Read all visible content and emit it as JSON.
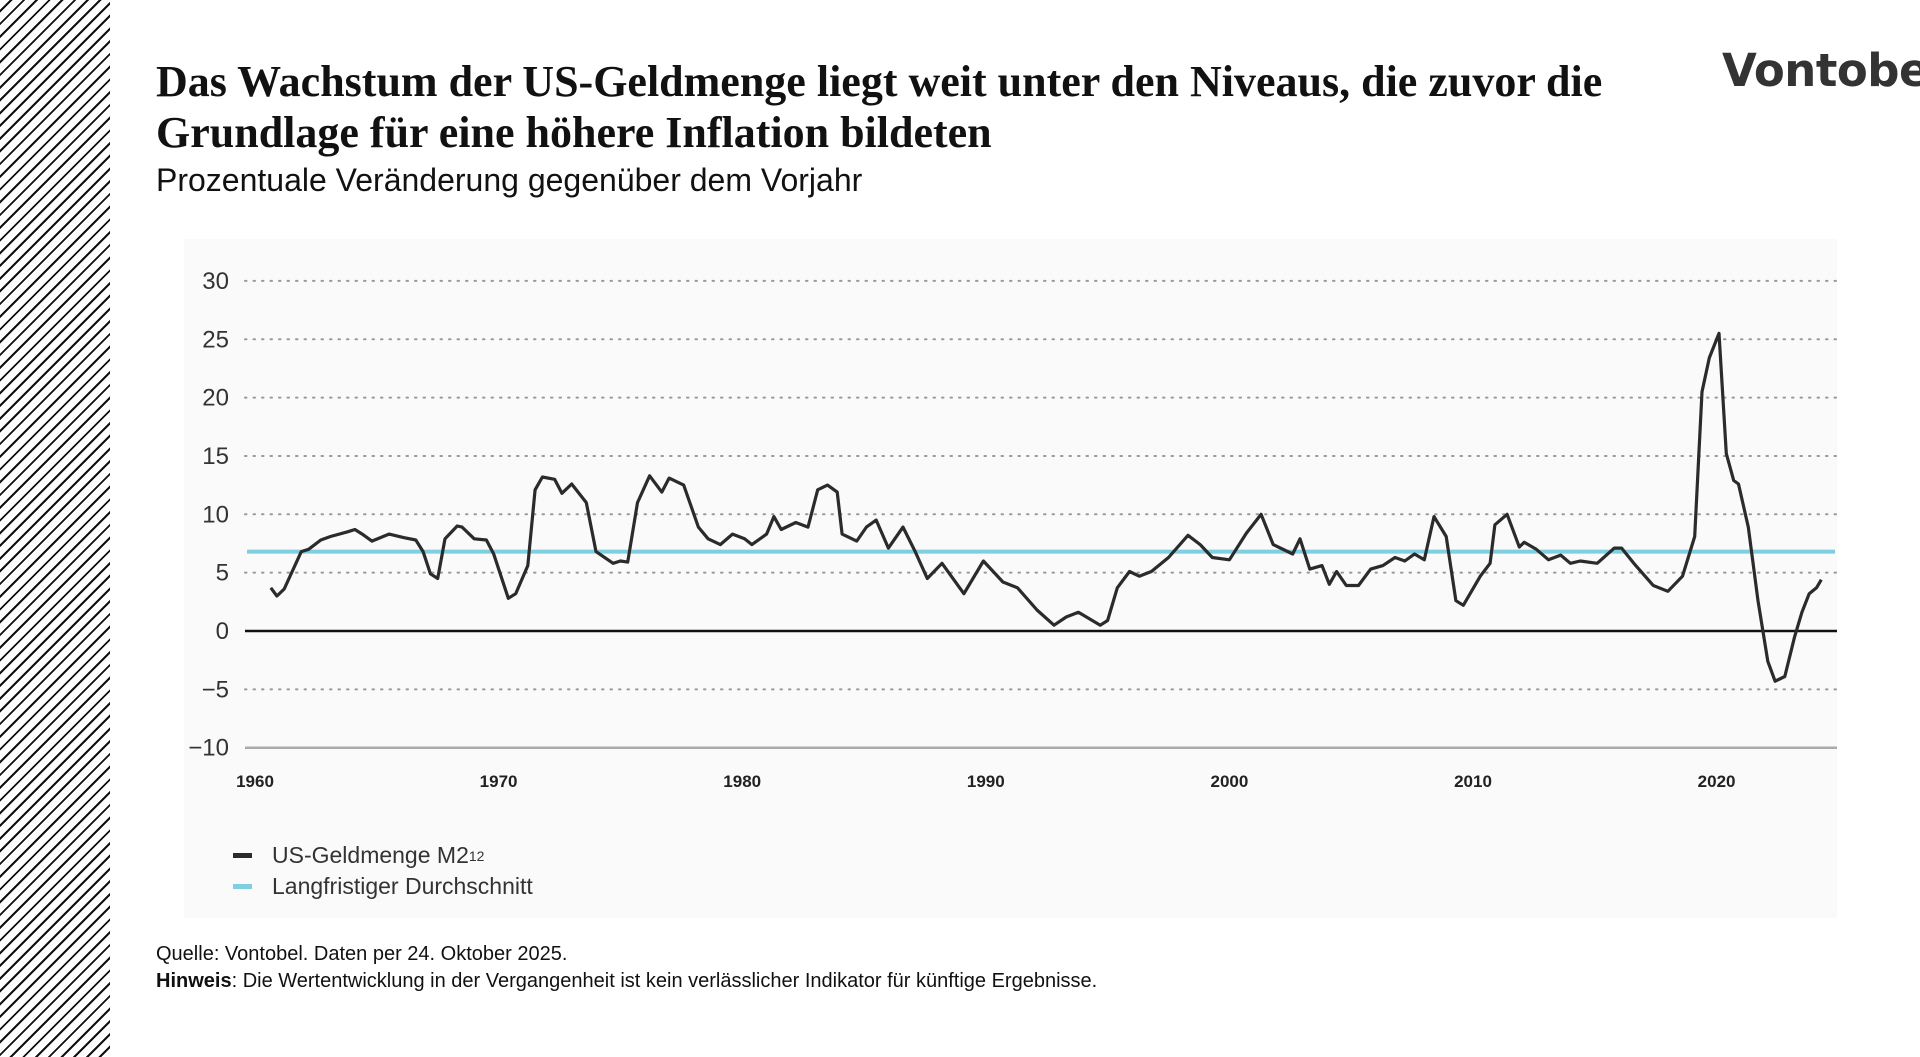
{
  "brand": {
    "logo_text": "Vontobel"
  },
  "header": {
    "title": "Das Wachstum der US-Geldmenge liegt weit unter den Niveaus, die zuvor die Grundlage für eine höhere Inflation bildeten",
    "subtitle": "Prozentuale Veränderung gegenüber dem Vorjahr"
  },
  "chart_data": {
    "type": "line",
    "title": "Das Wachstum der US-Geldmenge liegt weit unter den Niveaus, die zuvor die Grundlage für eine höhere Inflation bildeten",
    "subtitle": "Prozentuale Veränderung gegenüber dem Vorjahr",
    "xlabel": "",
    "ylabel": "",
    "xlim": [
      1960,
      2025.5
    ],
    "ylim": [
      -10,
      30
    ],
    "x_ticks": [
      "1960",
      "1970",
      "1980",
      "1990",
      "2000",
      "2010",
      "2020"
    ],
    "y_ticks": [
      "30",
      "25",
      "20",
      "15",
      "10",
      "5",
      "0",
      "−5",
      "−10"
    ],
    "grid": "horizontal dotted",
    "legend_position": "bottom-left",
    "colors": {
      "m2": "#2b2b2b",
      "average": "#7fcfe0"
    },
    "series": [
      {
        "name": "US-Geldmenge M2",
        "name_superscript": "12",
        "x": [
          1960.65,
          1960.9,
          1961.2,
          1961.9,
          1962.2,
          1962.7,
          1963.1,
          1963.8,
          1964.1,
          1964.4,
          1964.8,
          1965.5,
          1966.1,
          1966.6,
          1966.9,
          1967.2,
          1967.5,
          1967.8,
          1968.3,
          1968.5,
          1969.0,
          1969.5,
          1969.8,
          1970.4,
          1970.7,
          1971.2,
          1971.5,
          1971.8,
          1972.3,
          1972.6,
          1973.0,
          1973.6,
          1974.0,
          1974.7,
          1975.0,
          1975.3,
          1975.7,
          1976.2,
          1976.7,
          1977.0,
          1977.6,
          1978.2,
          1978.6,
          1979.1,
          1979.6,
          1980.1,
          1980.4,
          1981.0,
          1981.3,
          1981.6,
          1982.2,
          1982.7,
          1983.1,
          1983.5,
          1983.9,
          1984.1,
          1984.7,
          1985.1,
          1985.5,
          1986.0,
          1986.6,
          1987.1,
          1987.6,
          1988.2,
          1989.1,
          1989.9,
          1990.7,
          1991.3,
          1992.1,
          1992.8,
          1993.3,
          1993.8,
          1994.7,
          1995.0,
          1995.4,
          1995.9,
          1996.3,
          1996.8,
          1997.5,
          1998.3,
          1998.8,
          1999.3,
          2000.0,
          2000.7,
          2001.3,
          2001.8,
          2002.6,
          2002.9,
          2003.3,
          2003.8,
          2004.1,
          2004.4,
          2004.8,
          2005.3,
          2005.8,
          2006.3,
          2006.8,
          2007.2,
          2007.6,
          2008.0,
          2008.4,
          2008.9,
          2009.3,
          2009.6,
          2010.3,
          2010.7,
          2010.9,
          2011.4,
          2011.9,
          2012.1,
          2012.6,
          2013.1,
          2013.6,
          2014.0,
          2014.4,
          2015.1,
          2015.8,
          2016.1,
          2016.6,
          2017.4,
          2018.0,
          2018.6,
          2019.1,
          2019.4,
          2019.7,
          2020.1,
          2020.4,
          2020.7,
          2020.9,
          2021.3,
          2021.7,
          2022.1,
          2022.4,
          2022.8,
          2023.2,
          2023.5,
          2023.8,
          2024.1,
          2024.3
        ],
        "y": [
          3.7,
          3.0,
          3.6,
          6.8,
          7.0,
          7.8,
          8.1,
          8.5,
          8.7,
          8.3,
          7.7,
          8.3,
          8.0,
          7.8,
          6.8,
          4.9,
          4.5,
          7.9,
          9.0,
          8.9,
          7.9,
          7.8,
          6.6,
          2.8,
          3.2,
          5.6,
          12.1,
          13.2,
          13.0,
          11.8,
          12.6,
          11.0,
          6.8,
          5.8,
          6.0,
          5.9,
          11.0,
          13.3,
          11.9,
          13.1,
          12.5,
          8.9,
          7.9,
          7.4,
          8.3,
          7.9,
          7.4,
          8.3,
          9.8,
          8.7,
          9.3,
          8.9,
          12.1,
          12.5,
          11.9,
          8.3,
          7.7,
          8.9,
          9.5,
          7.1,
          8.9,
          6.8,
          4.5,
          5.8,
          3.2,
          6.0,
          4.2,
          3.7,
          1.8,
          0.5,
          1.2,
          1.6,
          0.5,
          0.9,
          3.7,
          5.1,
          4.7,
          5.1,
          6.3,
          8.2,
          7.4,
          6.3,
          6.1,
          8.4,
          10.0,
          7.4,
          6.6,
          7.9,
          5.3,
          5.6,
          4.0,
          5.1,
          3.9,
          3.9,
          5.3,
          5.6,
          6.3,
          6.0,
          6.6,
          6.1,
          9.8,
          8.1,
          2.6,
          2.2,
          4.7,
          5.8,
          9.1,
          10.0,
          7.2,
          7.6,
          7.0,
          6.1,
          6.5,
          5.8,
          6.0,
          5.8,
          7.1,
          7.1,
          5.8,
          3.9,
          3.4,
          4.7,
          8.1,
          20.5,
          23.4,
          25.5,
          15.2,
          12.9,
          12.6,
          8.9,
          2.6,
          -2.6,
          -4.3,
          -3.9,
          -0.5,
          1.6,
          3.2,
          3.7,
          4.4
        ]
      },
      {
        "name": "Langfristiger Durchschnitt",
        "constant": 6.8
      }
    ]
  },
  "legend": {
    "items": [
      {
        "label": "US-Geldmenge M2",
        "superscript": "12"
      },
      {
        "label": "Langfristiger Durchschnitt"
      }
    ]
  },
  "footer": {
    "source": "Quelle: Vontobel. Daten per 24. Oktober 2025.",
    "note_label": "Hinweis",
    "note_text": ": Die Wertentwicklung in der Vergangenheit ist kein verlässlicher Indikator für künftige Ergebnisse."
  }
}
